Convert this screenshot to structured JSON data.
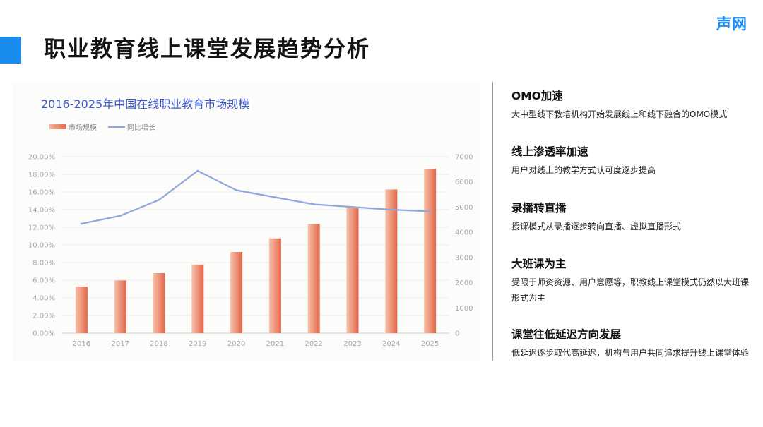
{
  "page": {
    "title": "职业教育线上课堂发展趋势分析",
    "brand": "声网"
  },
  "colors": {
    "accent": "#1a8cf0",
    "bar_light": "#f4b69b",
    "bar_dark": "#e4664a",
    "line": "#8fa7dc",
    "chart_title": "#3a57c8"
  },
  "chart_data": {
    "type": "bar",
    "title": "2016-2025年中国在线职业教育市场规模",
    "categories": [
      "2016",
      "2017",
      "2018",
      "2019",
      "2020",
      "2021",
      "2022",
      "2023",
      "2024",
      "2025"
    ],
    "series": [
      {
        "name": "市场规模",
        "type": "bar",
        "axis": "right",
        "values": [
          1850,
          2090,
          2380,
          2720,
          3220,
          3760,
          4330,
          4990,
          5700,
          6520
        ]
      },
      {
        "name": "同比增长",
        "type": "line",
        "axis": "left",
        "values": [
          12.4,
          13.3,
          15.1,
          18.4,
          16.2,
          15.4,
          14.6,
          14.3,
          14.0,
          13.8
        ]
      }
    ],
    "y_left": {
      "min": 0,
      "max": 20,
      "step": 2,
      "format": "percent"
    },
    "y_right": {
      "min": 0,
      "max": 7000,
      "step": 1000
    },
    "y_left_ticks": [
      "0.00%",
      "2.00%",
      "4.00%",
      "6.00%",
      "8.00%",
      "10.00%",
      "12.00%",
      "14.00%",
      "16.00%",
      "18.00%",
      "20.00%"
    ],
    "y_right_ticks": [
      "0",
      "1000",
      "2000",
      "3000",
      "4000",
      "5000",
      "6000",
      "7000"
    ],
    "legend_position": "top-left",
    "grid": true
  },
  "points": [
    {
      "title": "OMO加速",
      "desc": "大中型线下教培机构开始发展线上和线下融合的OMO模式"
    },
    {
      "title": "线上渗透率加速",
      "desc": "用户对线上的教学方式认可度逐步提高"
    },
    {
      "title": "录播转直播",
      "desc": "授课模式从录播逐步转向直播、虚拟直播形式"
    },
    {
      "title": "大班课为主",
      "desc": "受限于师资资源、用户意愿等，职教线上课堂模式仍然以大班课形式为主"
    },
    {
      "title": "课堂往低延迟方向发展",
      "desc": "低延迟逐步取代高延迟，机构与用户共同追求提升线上课堂体验"
    }
  ]
}
